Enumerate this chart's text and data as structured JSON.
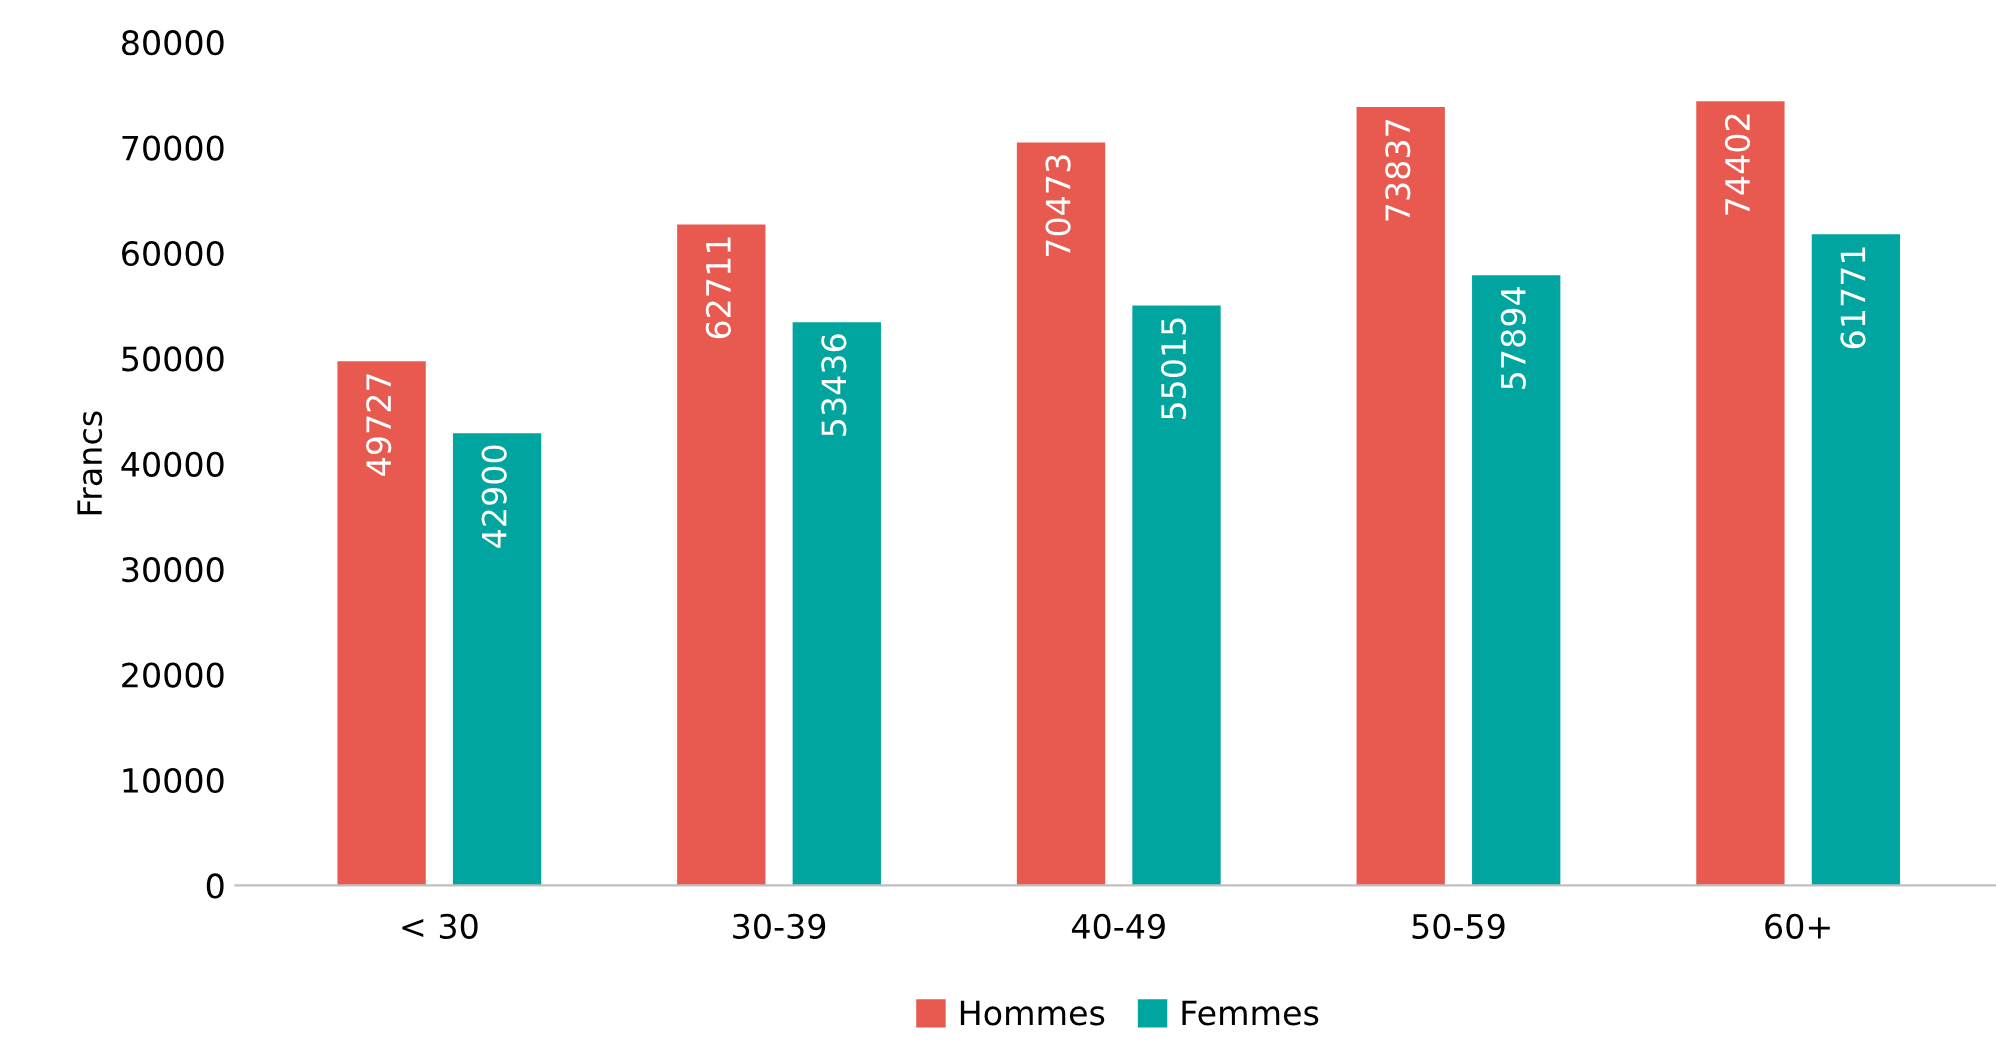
{
  "chart_data": {
    "type": "bar",
    "ylabel": "Francs",
    "categories": [
      "< 30",
      "30-39",
      "40-49",
      "50-59",
      "60+"
    ],
    "series": [
      {
        "name": "Hommes",
        "color": "#e85a50",
        "values": [
          49727,
          62711,
          70473,
          73837,
          74402
        ]
      },
      {
        "name": "Femmes",
        "color": "#00a5a0",
        "values": [
          42900,
          53436,
          55015,
          57894,
          61771
        ]
      }
    ],
    "ylim": [
      0,
      80000
    ],
    "yticks": [
      0,
      10000,
      20000,
      30000,
      40000,
      50000,
      60000,
      70000,
      80000
    ],
    "grid": false,
    "legend": "bottom",
    "data_labels": true
  }
}
